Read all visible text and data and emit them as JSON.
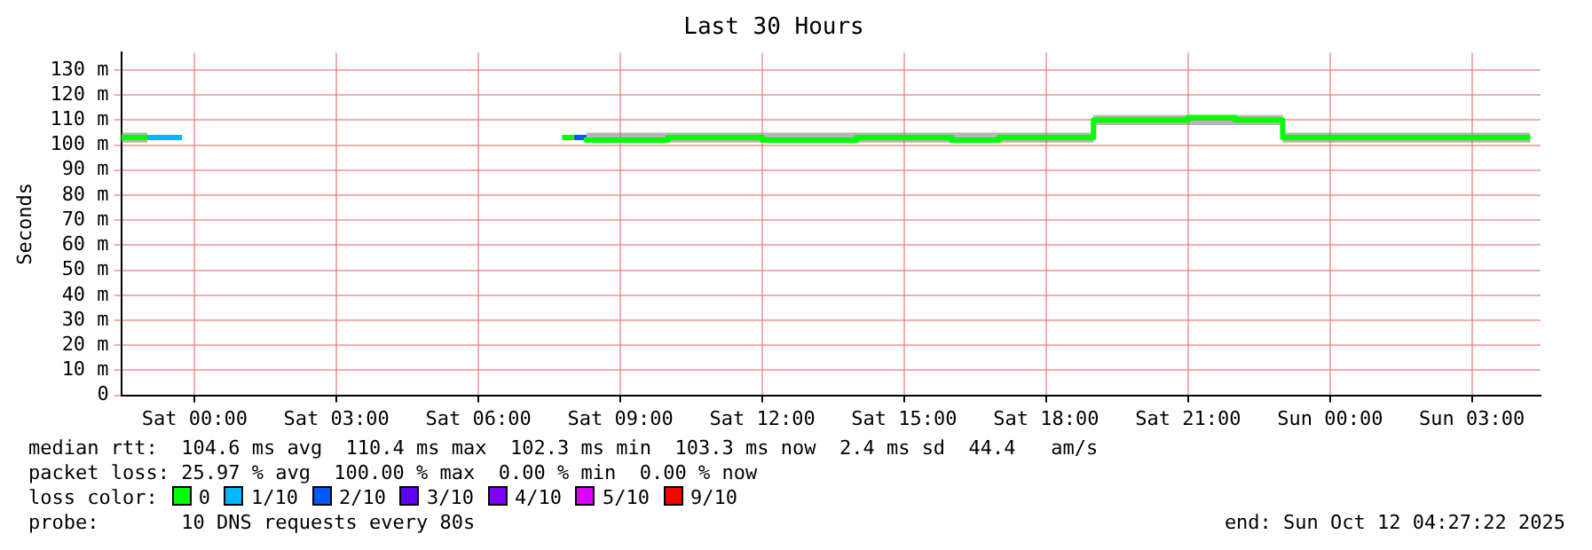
{
  "chart_data": {
    "type": "step",
    "title": "Last 30 Hours",
    "ylabel": "Seconds",
    "legend_title": "loss color:",
    "legend": "bottom",
    "grid": true,
    "marker": "none",
    "line_style": "solid",
    "xlim": [
      "2025-10-10T22:27",
      "2025-10-12T04:27"
    ],
    "xticks": [
      {
        "value": "2025-10-11T00:00",
        "label": "Sat 00:00"
      },
      {
        "value": "2025-10-11T03:00",
        "label": "Sat 03:00"
      },
      {
        "value": "2025-10-11T06:00",
        "label": "Sat 06:00"
      },
      {
        "value": "2025-10-11T09:00",
        "label": "Sat 09:00"
      },
      {
        "value": "2025-10-11T12:00",
        "label": "Sat 12:00"
      },
      {
        "value": "2025-10-11T15:00",
        "label": "Sat 15:00"
      },
      {
        "value": "2025-10-11T18:00",
        "label": "Sat 18:00"
      },
      {
        "value": "2025-10-11T21:00",
        "label": "Sat 21:00"
      },
      {
        "value": "2025-10-12T00:00",
        "label": "Sun 00:00"
      },
      {
        "value": "2025-10-12T03:00",
        "label": "Sun 03:00"
      }
    ],
    "ylim": [
      0,
      137
    ],
    "yticks": [
      0,
      {
        "value": 10,
        "label": "10 m"
      },
      {
        "value": 20,
        "label": "20 m"
      },
      {
        "value": 30,
        "label": "30 m"
      },
      {
        "value": 40,
        "label": "40 m"
      },
      {
        "value": 50,
        "label": "50 m"
      },
      {
        "value": 60,
        "label": "60 m"
      },
      {
        "value": 70,
        "label": "70 m"
      },
      {
        "value": 80,
        "label": "80 m"
      },
      {
        "value": 90,
        "label": "90 m"
      },
      {
        "value": 100,
        "label": "100 m"
      },
      {
        "value": 110,
        "label": "110 m"
      },
      {
        "value": 120,
        "label": "120 m"
      },
      {
        "value": 130,
        "label": "130 m"
      }
    ],
    "series": [
      {
        "name": "0",
        "color": "#00ff00",
        "x": [
          "2025-10-10T22:27",
          "2025-10-10T23:00",
          "2025-10-10T23:01",
          "2025-10-11T07:46",
          "2025-10-11T08:01",
          "2025-10-11T08:02",
          "2025-10-11T08:17",
          "2025-10-11T09:00",
          "2025-10-11T10:00",
          "2025-10-11T11:00",
          "2025-10-11T12:00",
          "2025-10-11T13:00",
          "2025-10-11T14:00",
          "2025-10-11T15:00",
          "2025-10-11T16:00",
          "2025-10-11T17:00",
          "2025-10-11T18:00",
          "2025-10-11T19:00",
          "2025-10-11T20:00",
          "2025-10-11T21:00",
          "2025-10-11T22:00",
          "2025-10-11T23:00",
          "2025-10-12T00:00",
          "2025-10-12T01:00",
          "2025-10-12T02:00",
          "2025-10-12T03:00",
          "2025-10-12T04:14"
        ],
        "values": [
          103,
          103,
          null,
          103,
          103,
          null,
          103,
          102,
          102,
          103,
          103,
          102,
          102,
          103,
          103,
          102,
          103,
          103,
          110,
          110,
          111,
          110,
          103,
          103,
          103,
          103,
          103
        ],
        "lower": [
          101,
          101,
          null,
          null,
          null,
          null,
          101,
          101,
          101,
          101,
          101,
          101,
          101,
          101,
          101,
          101,
          101,
          101,
          108,
          108,
          108,
          108,
          101,
          101,
          101,
          101,
          101
        ],
        "upper": [
          105,
          105,
          null,
          null,
          null,
          null,
          105,
          105,
          105,
          105,
          105,
          105,
          105,
          105,
          105,
          105,
          105,
          105,
          112,
          112,
          112,
          112,
          105,
          105,
          105,
          105,
          105
        ]
      },
      {
        "name": "1/10",
        "color": "#00b8ff",
        "x": [
          "2025-10-10T23:00",
          "2025-10-10T23:44"
        ],
        "values": [
          103,
          103
        ]
      },
      {
        "name": "2/10",
        "color": "#0059ff",
        "x": [
          "2025-10-11T08:01",
          "2025-10-11T08:17"
        ],
        "values": [
          103,
          103
        ]
      },
      {
        "name": "3/10",
        "color": "#5e00ff"
      },
      {
        "name": "4/10",
        "color": "#7e00ff"
      },
      {
        "name": "5/10",
        "color": "#dd00ff"
      },
      {
        "name": "9/10",
        "color": "#ff0000"
      }
    ],
    "annotations": [
      "median rtt:  104.6 ms avg  110.4 ms max  102.3 ms min  103.3 ms now  2.4 ms sd  44.4   am/s",
      "packet loss: 25.97 % avg  100.00 % max  0.00 % min  0.00 % now",
      "probe:       10 DNS requests every 80s",
      "end: Sun Oct 12 04:27:22 2025"
    ]
  }
}
